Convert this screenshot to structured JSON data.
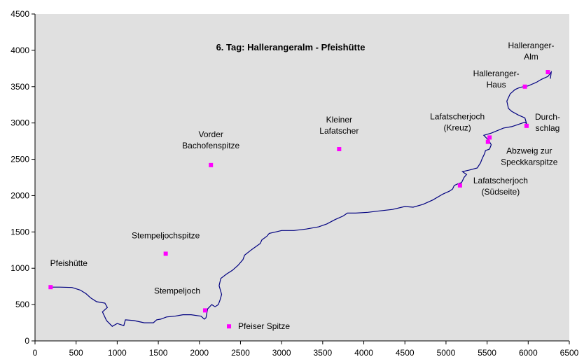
{
  "chart_data": {
    "type": "scatter",
    "title": "6. Tag: Hallerangeralm - Pfeishütte",
    "xlabel": "",
    "ylabel": "",
    "xlim": [
      0,
      6500
    ],
    "ylim": [
      0,
      4500
    ],
    "x_ticks": [
      0,
      500,
      1000,
      1500,
      2000,
      2500,
      3000,
      3500,
      4000,
      4500,
      5000,
      5500,
      6000,
      6500
    ],
    "y_ticks": [
      0,
      500,
      1000,
      1500,
      2000,
      2500,
      3000,
      3500,
      4000,
      4500
    ],
    "grid": false,
    "plot_background": "#e0e0e0",
    "route_color": "#000080",
    "marker_color": "#ff00ff",
    "route": [
      [
        200,
        740
      ],
      [
        300,
        740
      ],
      [
        450,
        735
      ],
      [
        550,
        700
      ],
      [
        620,
        650
      ],
      [
        680,
        590
      ],
      [
        750,
        540
      ],
      [
        850,
        520
      ],
      [
        880,
        460
      ],
      [
        820,
        400
      ],
      [
        870,
        280
      ],
      [
        940,
        200
      ],
      [
        1000,
        240
      ],
      [
        1080,
        210
      ],
      [
        1100,
        290
      ],
      [
        1200,
        280
      ],
      [
        1330,
        250
      ],
      [
        1440,
        250
      ],
      [
        1480,
        290
      ],
      [
        1530,
        300
      ],
      [
        1600,
        330
      ],
      [
        1700,
        340
      ],
      [
        1800,
        360
      ],
      [
        1900,
        360
      ],
      [
        2020,
        340
      ],
      [
        2060,
        300
      ],
      [
        2080,
        320
      ],
      [
        2100,
        440
      ],
      [
        2150,
        500
      ],
      [
        2190,
        470
      ],
      [
        2230,
        500
      ],
      [
        2250,
        560
      ],
      [
        2270,
        640
      ],
      [
        2240,
        760
      ],
      [
        2260,
        860
      ],
      [
        2330,
        920
      ],
      [
        2400,
        970
      ],
      [
        2470,
        1040
      ],
      [
        2530,
        1120
      ],
      [
        2550,
        1180
      ],
      [
        2640,
        1260
      ],
      [
        2740,
        1340
      ],
      [
        2760,
        1390
      ],
      [
        2820,
        1440
      ],
      [
        2850,
        1480
      ],
      [
        2930,
        1500
      ],
      [
        3000,
        1520
      ],
      [
        3150,
        1520
      ],
      [
        3300,
        1540
      ],
      [
        3450,
        1570
      ],
      [
        3550,
        1610
      ],
      [
        3650,
        1670
      ],
      [
        3750,
        1720
      ],
      [
        3800,
        1760
      ],
      [
        3900,
        1760
      ],
      [
        4050,
        1770
      ],
      [
        4200,
        1790
      ],
      [
        4350,
        1810
      ],
      [
        4500,
        1850
      ],
      [
        4600,
        1840
      ],
      [
        4720,
        1880
      ],
      [
        4840,
        1940
      ],
      [
        4960,
        2020
      ],
      [
        5040,
        2060
      ],
      [
        5080,
        2090
      ],
      [
        5100,
        2140
      ],
      [
        5140,
        2160
      ],
      [
        5190,
        2180
      ],
      [
        5220,
        2250
      ],
      [
        5250,
        2290
      ],
      [
        5200,
        2330
      ],
      [
        5280,
        2350
      ],
      [
        5380,
        2380
      ],
      [
        5420,
        2450
      ],
      [
        5440,
        2510
      ],
      [
        5470,
        2580
      ],
      [
        5480,
        2620
      ],
      [
        5530,
        2640
      ],
      [
        5550,
        2700
      ],
      [
        5520,
        2760
      ],
      [
        5460,
        2830
      ],
      [
        5550,
        2860
      ],
      [
        5700,
        2930
      ],
      [
        5800,
        2950
      ],
      [
        5960,
        3010
      ],
      [
        5980,
        2990
      ],
      [
        5960,
        3070
      ],
      [
        5880,
        3110
      ],
      [
        5800,
        3160
      ],
      [
        5760,
        3200
      ],
      [
        5740,
        3300
      ],
      [
        5780,
        3400
      ],
      [
        5840,
        3460
      ],
      [
        5900,
        3490
      ],
      [
        6000,
        3510
      ],
      [
        6100,
        3560
      ],
      [
        6160,
        3600
      ],
      [
        6240,
        3640
      ],
      [
        6280,
        3700
      ],
      [
        6270,
        3610
      ]
    ],
    "points": [
      {
        "label_lines": [
          "Pfeishütte"
        ],
        "x": 190,
        "y": 740
      },
      {
        "label_lines": [
          "Stempeljochspitze"
        ],
        "x": 1590,
        "y": 1200
      },
      {
        "label_lines": [
          "Stempeljoch"
        ],
        "x": 2070,
        "y": 420
      },
      {
        "label_lines": [
          "Pfeiser Spitze"
        ],
        "x": 2360,
        "y": 200
      },
      {
        "label_lines": [
          "Vorder",
          "Bachofenspitze"
        ],
        "x": 2140,
        "y": 2420
      },
      {
        "label_lines": [
          "Kleiner",
          "Lafatscher"
        ],
        "x": 3700,
        "y": 2640
      },
      {
        "label_lines": [
          "Lafatscherjoch",
          "(Kreuz)"
        ],
        "x": 5530,
        "y": 2800
      },
      {
        "label_lines": [
          "Abzweig zur",
          "Speckkarspitze"
        ],
        "x": 5510,
        "y": 2740
      },
      {
        "label_lines": [
          "Lafatscherjoch",
          "(Südseite)"
        ],
        "x": 5170,
        "y": 2140
      },
      {
        "label_lines": [
          "Durch-",
          "schlag"
        ],
        "x": 5980,
        "y": 2960
      },
      {
        "label_lines": [
          "Halleranger-",
          "Haus"
        ],
        "x": 5960,
        "y": 3500
      },
      {
        "label_lines": [
          "Halleranger-",
          "Alm"
        ],
        "x": 6240,
        "y": 3700
      }
    ]
  }
}
